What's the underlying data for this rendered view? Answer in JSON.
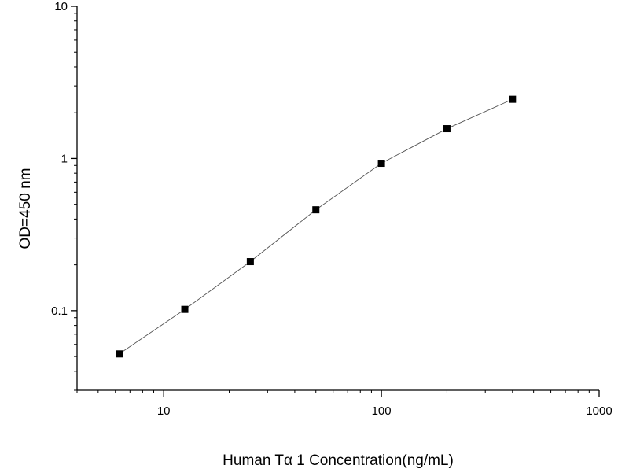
{
  "chart_data": {
    "type": "scatter",
    "title": "",
    "xlabel": "Human Tα 1 Concentration(ng/mL)",
    "ylabel": "OD=450 nm",
    "x_scale": "log",
    "y_scale": "log",
    "xlim": [
      4,
      1000
    ],
    "ylim": [
      0.03,
      10
    ],
    "x_ticks": [
      {
        "value": 10,
        "label": "10"
      },
      {
        "value": 100,
        "label": "100"
      },
      {
        "value": 1000,
        "label": "1000"
      }
    ],
    "y_ticks": [
      {
        "value": 0.1,
        "label": "0.1"
      },
      {
        "value": 1,
        "label": "1"
      },
      {
        "value": 10,
        "label": "10"
      }
    ],
    "grid": false,
    "legend": "none",
    "series": [
      {
        "x": [
          6.25,
          12.5,
          25,
          50,
          100,
          200,
          400
        ],
        "y": [
          0.052,
          0.102,
          0.21,
          0.46,
          0.93,
          1.57,
          2.45
        ],
        "marker": "square",
        "connect_line": true,
        "color": "#000000"
      }
    ]
  }
}
